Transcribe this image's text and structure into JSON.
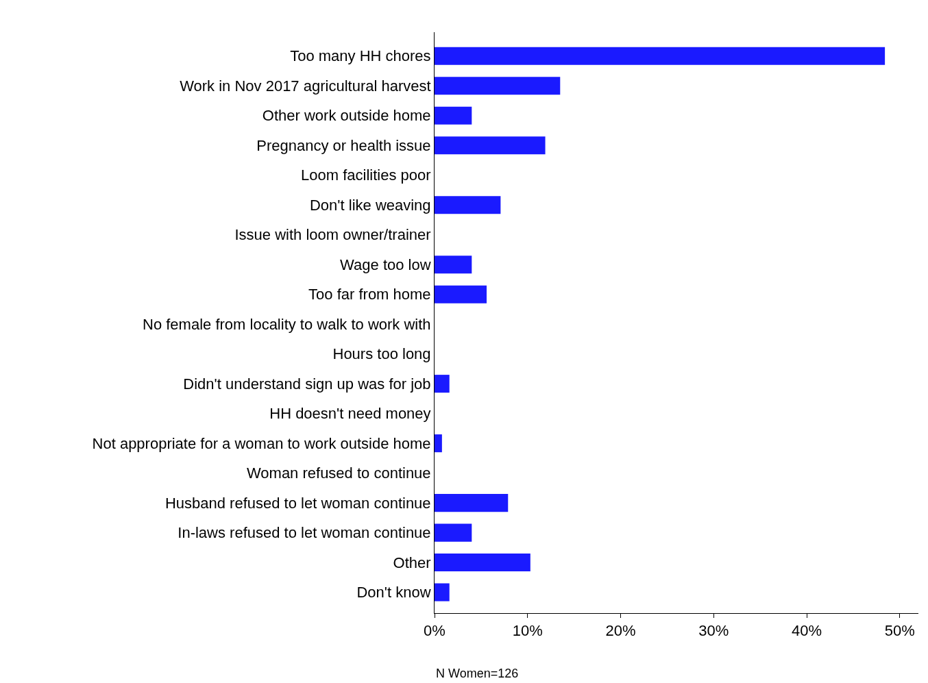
{
  "chart_data": {
    "type": "bar",
    "orientation": "horizontal",
    "categories": [
      "Too many HH chores",
      "Work in Nov 2017 agricultural harvest",
      "Other work outside home",
      "Pregnancy or health issue",
      "Loom facilities poor",
      "Don't like weaving",
      "Issue with loom owner/trainer",
      "Wage too low",
      "Too far from home",
      "No female from locality to walk to work with",
      "Hours too long",
      "Didn't understand sign up was for job",
      "HH doesn't need money",
      "Not appropriate for a woman to work outside home",
      "Woman refused to continue",
      "Husband refused to let woman continue",
      "In-laws refused to let woman continue",
      "Other",
      "Don't know"
    ],
    "values": [
      48.4,
      13.5,
      4.0,
      11.9,
      0,
      7.1,
      0,
      4.0,
      5.6,
      0,
      0,
      1.6,
      0,
      0.8,
      0,
      7.9,
      4.0,
      10.3,
      1.6
    ],
    "color": "#1a1aff",
    "xlim": [
      0,
      52
    ],
    "xticks": [
      {
        "value": 0,
        "label": "0%"
      },
      {
        "value": 10,
        "label": "10%"
      },
      {
        "value": 20,
        "label": "20%"
      },
      {
        "value": 30,
        "label": "30%"
      },
      {
        "value": 40,
        "label": "40%"
      },
      {
        "value": 50,
        "label": "50%"
      }
    ],
    "annotations": [
      "N Women=126"
    ],
    "grid": false,
    "legend": false
  }
}
